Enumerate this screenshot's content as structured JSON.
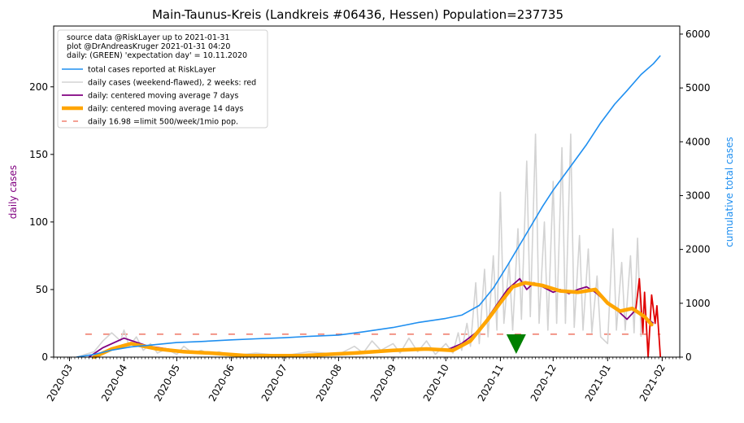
{
  "chart_data": {
    "type": "line",
    "title": "Main-Taunus-Kreis (Landkreis #06436, Hessen) Population=237735",
    "ylabel_left": "daily cases",
    "ylabel_right": "cumulative total cases",
    "ylim_left": [
      0,
      245
    ],
    "ylim_right": [
      0,
      6150
    ],
    "yticks_left": [
      "0",
      "50",
      "100",
      "150",
      "200"
    ],
    "yticks_right": [
      "0",
      "1000",
      "2000",
      "3000",
      "4000",
      "5000",
      "6000"
    ],
    "xlim": [
      "2020-02-21",
      "2021-02-11"
    ],
    "xticks": [
      "2020-03",
      "2020-04",
      "2020-05",
      "2020-06",
      "2020-07",
      "2020-08",
      "2020-09",
      "2020-10",
      "2020-11",
      "2020-12",
      "2021-01",
      "2021-02"
    ],
    "grid": false,
    "legend_position": "top-left",
    "legend_text": [
      "source data @RiskLayer up to 2021-01-31",
      "plot @DrAndreasKruger 2021-01-31 04:20",
      "daily: (GREEN) 'expectation day' = 10.11.2020"
    ],
    "legend": [
      {
        "label": "total cases reported at RiskLayer",
        "color": "#1f8ff0"
      },
      {
        "label": "daily cases (weekend-flawed), 2 weeks: red",
        "color": "#d3d3d3"
      },
      {
        "label": "daily: centered moving average 7 days",
        "color": "#800080"
      },
      {
        "label": "daily: centered moving average 14 days",
        "color": "#ffa500"
      },
      {
        "label": "daily 16.98 =limit 500/week/1mio pop.",
        "color": "#f08070"
      }
    ],
    "limit_line": 16.98,
    "expectation_day": "2020-11-10",
    "series": {
      "total": [
        [
          "2020-03-05",
          0
        ],
        [
          "2020-03-15",
          50
        ],
        [
          "2020-03-25",
          130
        ],
        [
          "2020-04-05",
          190
        ],
        [
          "2020-04-15",
          220
        ],
        [
          "2020-05-01",
          270
        ],
        [
          "2020-05-15",
          290
        ],
        [
          "2020-06-01",
          320
        ],
        [
          "2020-06-15",
          340
        ],
        [
          "2020-07-01",
          360
        ],
        [
          "2020-07-15",
          385
        ],
        [
          "2020-08-01",
          410
        ],
        [
          "2020-08-15",
          470
        ],
        [
          "2020-09-01",
          550
        ],
        [
          "2020-09-15",
          640
        ],
        [
          "2020-10-01",
          720
        ],
        [
          "2020-10-10",
          780
        ],
        [
          "2020-10-20",
          960
        ],
        [
          "2020-10-28",
          1280
        ],
        [
          "2020-11-05",
          1700
        ],
        [
          "2020-11-15",
          2250
        ],
        [
          "2020-11-25",
          2800
        ],
        [
          "2020-12-01",
          3100
        ],
        [
          "2020-12-10",
          3500
        ],
        [
          "2020-12-20",
          3950
        ],
        [
          "2020-12-28",
          4350
        ],
        [
          "2021-01-05",
          4700
        ],
        [
          "2021-01-12",
          4950
        ],
        [
          "2021-01-20",
          5250
        ],
        [
          "2021-01-27",
          5450
        ],
        [
          "2021-01-31",
          5600
        ]
      ],
      "daily_raw": [
        [
          "2020-03-05",
          0
        ],
        [
          "2020-03-15",
          4
        ],
        [
          "2020-03-20",
          12
        ],
        [
          "2020-03-25",
          18
        ],
        [
          "2020-03-30",
          12
        ],
        [
          "2020-04-01",
          20
        ],
        [
          "2020-04-04",
          8
        ],
        [
          "2020-04-08",
          15
        ],
        [
          "2020-04-12",
          5
        ],
        [
          "2020-04-16",
          10
        ],
        [
          "2020-04-20",
          3
        ],
        [
          "2020-04-25",
          6
        ],
        [
          "2020-05-01",
          2
        ],
        [
          "2020-05-05",
          8
        ],
        [
          "2020-05-10",
          3
        ],
        [
          "2020-05-15",
          5
        ],
        [
          "2020-05-20",
          2
        ],
        [
          "2020-05-25",
          4
        ],
        [
          "2020-06-01",
          1
        ],
        [
          "2020-06-15",
          3
        ],
        [
          "2020-07-01",
          1
        ],
        [
          "2020-07-15",
          4
        ],
        [
          "2020-08-01",
          2
        ],
        [
          "2020-08-10",
          8
        ],
        [
          "2020-08-15",
          3
        ],
        [
          "2020-08-20",
          12
        ],
        [
          "2020-08-25",
          5
        ],
        [
          "2020-09-01",
          10
        ],
        [
          "2020-09-05",
          3
        ],
        [
          "2020-09-10",
          14
        ],
        [
          "2020-09-15",
          4
        ],
        [
          "2020-09-20",
          12
        ],
        [
          "2020-09-25",
          2
        ],
        [
          "2020-10-01",
          10
        ],
        [
          "2020-10-05",
          3
        ],
        [
          "2020-10-08",
          18
        ],
        [
          "2020-10-10",
          5
        ],
        [
          "2020-10-13",
          25
        ],
        [
          "2020-10-15",
          8
        ],
        [
          "2020-10-18",
          55
        ],
        [
          "2020-10-20",
          10
        ],
        [
          "2020-10-23",
          65
        ],
        [
          "2020-10-25",
          15
        ],
        [
          "2020-10-28",
          75
        ],
        [
          "2020-10-30",
          20
        ],
        [
          "2020-11-01",
          122
        ],
        [
          "2020-11-03",
          25
        ],
        [
          "2020-11-06",
          70
        ],
        [
          "2020-11-08",
          20
        ],
        [
          "2020-11-11",
          95
        ],
        [
          "2020-11-13",
          28
        ],
        [
          "2020-11-16",
          145
        ],
        [
          "2020-11-18",
          30
        ],
        [
          "2020-11-21",
          165
        ],
        [
          "2020-11-23",
          25
        ],
        [
          "2020-11-26",
          100
        ],
        [
          "2020-11-28",
          20
        ],
        [
          "2020-12-01",
          130
        ],
        [
          "2020-12-03",
          25
        ],
        [
          "2020-12-06",
          155
        ],
        [
          "2020-12-08",
          25
        ],
        [
          "2020-12-11",
          165
        ],
        [
          "2020-12-13",
          22
        ],
        [
          "2020-12-16",
          90
        ],
        [
          "2020-12-18",
          20
        ],
        [
          "2020-12-21",
          80
        ],
        [
          "2020-12-23",
          18
        ],
        [
          "2020-12-26",
          60
        ],
        [
          "2020-12-28",
          15
        ],
        [
          "2021-01-01",
          10
        ],
        [
          "2021-01-04",
          95
        ],
        [
          "2021-01-06",
          20
        ],
        [
          "2021-01-09",
          70
        ],
        [
          "2021-01-11",
          20
        ],
        [
          "2021-01-14",
          75
        ],
        [
          "2021-01-16",
          18
        ],
        [
          "2021-01-18",
          88
        ],
        [
          "2021-01-20",
          15
        ]
      ],
      "daily_recent": [
        [
          "2021-01-17",
          35
        ],
        [
          "2021-01-19",
          58
        ],
        [
          "2021-01-21",
          18
        ],
        [
          "2021-01-22",
          48
        ],
        [
          "2021-01-24",
          0
        ],
        [
          "2021-01-26",
          46
        ],
        [
          "2021-01-28",
          25
        ],
        [
          "2021-01-29",
          38
        ],
        [
          "2021-01-31",
          0
        ]
      ],
      "ma7": [
        [
          "2020-03-12",
          0
        ],
        [
          "2020-03-20",
          7
        ],
        [
          "2020-04-01",
          14
        ],
        [
          "2020-04-15",
          8
        ],
        [
          "2020-05-01",
          5
        ],
        [
          "2020-05-15",
          4
        ],
        [
          "2020-06-01",
          2
        ],
        [
          "2020-07-01",
          1
        ],
        [
          "2020-08-01",
          2
        ],
        [
          "2020-09-01",
          5
        ],
        [
          "2020-09-15",
          6
        ],
        [
          "2020-10-01",
          5
        ],
        [
          "2020-10-10",
          10
        ],
        [
          "2020-10-20",
          20
        ],
        [
          "2020-10-28",
          35
        ],
        [
          "2020-11-05",
          50
        ],
        [
          "2020-11-12",
          58
        ],
        [
          "2020-11-16",
          50
        ],
        [
          "2020-11-20",
          55
        ],
        [
          "2020-11-25",
          52
        ],
        [
          "2020-12-01",
          48
        ],
        [
          "2020-12-05",
          50
        ],
        [
          "2020-12-10",
          47
        ],
        [
          "2020-12-15",
          50
        ],
        [
          "2020-12-20",
          52
        ],
        [
          "2020-12-25",
          48
        ],
        [
          "2021-01-01",
          40
        ],
        [
          "2021-01-07",
          34
        ],
        [
          "2021-01-12",
          28
        ],
        [
          "2021-01-17",
          35
        ],
        [
          "2021-01-22",
          30
        ],
        [
          "2021-01-27",
          25
        ]
      ],
      "ma14": [
        [
          "2020-03-15",
          0
        ],
        [
          "2020-03-25",
          6
        ],
        [
          "2020-04-05",
          10
        ],
        [
          "2020-04-20",
          6
        ],
        [
          "2020-05-05",
          4
        ],
        [
          "2020-05-20",
          3
        ],
        [
          "2020-06-10",
          1
        ],
        [
          "2020-07-10",
          1
        ],
        [
          "2020-08-10",
          3
        ],
        [
          "2020-09-01",
          5
        ],
        [
          "2020-09-20",
          6
        ],
        [
          "2020-10-05",
          5
        ],
        [
          "2020-10-15",
          12
        ],
        [
          "2020-10-25",
          28
        ],
        [
          "2020-11-02",
          42
        ],
        [
          "2020-11-08",
          52
        ],
        [
          "2020-11-15",
          55
        ],
        [
          "2020-11-25",
          53
        ],
        [
          "2020-12-05",
          49
        ],
        [
          "2020-12-15",
          48
        ],
        [
          "2020-12-25",
          50
        ],
        [
          "2021-01-01",
          40
        ],
        [
          "2021-01-08",
          34
        ],
        [
          "2021-01-15",
          36
        ],
        [
          "2021-01-22",
          30
        ],
        [
          "2021-01-26",
          24
        ]
      ]
    }
  }
}
